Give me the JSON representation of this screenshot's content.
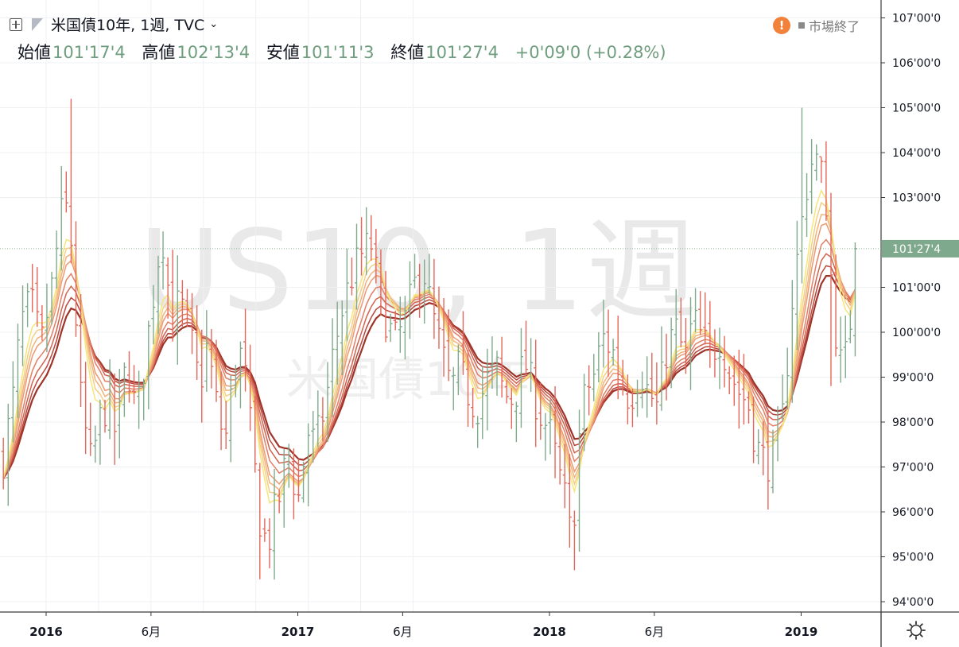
{
  "header": {
    "symbol_title": "米国債10年, 1週, TVC",
    "status": "市場終了",
    "status_icon": "exclamation-icon",
    "open_label": "始値",
    "open_value": "101'17'4",
    "high_label": "高値",
    "high_value": "102'13'4",
    "low_label": "安値",
    "low_value": "101'11'3",
    "close_label": "終値",
    "close_value": "101'27'4",
    "change": "+0'09'0 (+0.28%)"
  },
  "watermark": {
    "main": "US10, 1週",
    "sub": "米国債10年"
  },
  "colors": {
    "up": "#80aa8c",
    "down": "#e2675a",
    "grid": "#eef0f3",
    "price_tag": "#7fa98d",
    "ribbon": [
      "#f6e67a",
      "#f5cf86",
      "#f1b47d",
      "#ec9a72",
      "#e37f66",
      "#d2634f",
      "#b9473c",
      "#9e3329"
    ]
  },
  "chart_data": {
    "type": "ohlc",
    "title": "米国債10年, 1週, TVC",
    "xlabel": "",
    "ylabel": "",
    "ylim": [
      93.75,
      107.25
    ],
    "x_ticks": [
      {
        "label": "2016",
        "t": 0.0,
        "bold": true
      },
      {
        "label": "6月",
        "t": 0.4167,
        "bold": false
      },
      {
        "label": "2017",
        "t": 1.0,
        "bold": true
      },
      {
        "label": "6月",
        "t": 1.4167,
        "bold": false
      },
      {
        "label": "2018",
        "t": 2.0,
        "bold": true
      },
      {
        "label": "6月",
        "t": 2.4167,
        "bold": false
      },
      {
        "label": "2019",
        "t": 3.0,
        "bold": true
      }
    ],
    "y_ticks": [
      {
        "label": "94'00'0",
        "v": 94
      },
      {
        "label": "95'00'0",
        "v": 95
      },
      {
        "label": "96'00'0",
        "v": 96
      },
      {
        "label": "97'00'0",
        "v": 97
      },
      {
        "label": "98'00'0",
        "v": 98
      },
      {
        "label": "99'00'0",
        "v": 99
      },
      {
        "label": "100'00'0",
        "v": 100
      },
      {
        "label": "101'00'0",
        "v": 101
      },
      {
        "label": "103'00'0",
        "v": 103
      },
      {
        "label": "104'00'0",
        "v": 104
      },
      {
        "label": "105'00'0",
        "v": 105
      },
      {
        "label": "106'00'0",
        "v": 106
      },
      {
        "label": "107'00'0",
        "v": 107
      }
    ],
    "last_price": {
      "label": "101'27'4",
      "v": 101.86
    },
    "grid": true,
    "close_anchors": [
      [
        -0.17,
        97.2
      ],
      [
        -0.13,
        98.6
      ],
      [
        -0.1,
        100.2
      ],
      [
        -0.06,
        100.7
      ],
      [
        -0.02,
        99.7
      ],
      [
        0.02,
        100.9
      ],
      [
        0.06,
        102.6
      ],
      [
        0.09,
        102.8
      ],
      [
        0.11,
        101.1
      ],
      [
        0.14,
        98.3
      ],
      [
        0.18,
        97.0
      ],
      [
        0.21,
        98.0
      ],
      [
        0.25,
        98.5
      ],
      [
        0.28,
        97.6
      ],
      [
        0.32,
        99.4
      ],
      [
        0.36,
        98.1
      ],
      [
        0.39,
        99.3
      ],
      [
        0.43,
        101.0
      ],
      [
        0.46,
        102.3
      ],
      [
        0.5,
        100.2
      ],
      [
        0.53,
        100.7
      ],
      [
        0.57,
        100.0
      ],
      [
        0.61,
        98.8
      ],
      [
        0.64,
        99.7
      ],
      [
        0.68,
        98.3
      ],
      [
        0.71,
        97.5
      ],
      [
        0.75,
        99.2
      ],
      [
        0.78,
        99.6
      ],
      [
        0.82,
        97.4
      ],
      [
        0.85,
        95.8
      ],
      [
        0.88,
        95.2
      ],
      [
        0.9,
        95.8
      ],
      [
        0.93,
        96.4
      ],
      [
        0.96,
        97.4
      ],
      [
        1.0,
        96.2
      ],
      [
        1.04,
        97.8
      ],
      [
        1.07,
        97.5
      ],
      [
        1.11,
        98.4
      ],
      [
        1.14,
        99.5
      ],
      [
        1.18,
        100.6
      ],
      [
        1.21,
        101.2
      ],
      [
        1.25,
        101.7
      ],
      [
        1.29,
        102.0
      ],
      [
        1.32,
        101.0
      ],
      [
        1.36,
        100.1
      ],
      [
        1.39,
        99.8
      ],
      [
        1.43,
        100.3
      ],
      [
        1.46,
        101.0
      ],
      [
        1.5,
        101.4
      ],
      [
        1.53,
        100.5
      ],
      [
        1.57,
        99.6
      ],
      [
        1.61,
        98.7
      ],
      [
        1.64,
        99.2
      ],
      [
        1.68,
        98.6
      ],
      [
        1.71,
        98.3
      ],
      [
        1.75,
        98.9
      ],
      [
        1.79,
        99.2
      ],
      [
        1.82,
        98.6
      ],
      [
        1.86,
        98.5
      ],
      [
        1.9,
        99.4
      ],
      [
        1.93,
        98.8
      ],
      [
        1.96,
        98.2
      ],
      [
        2.0,
        97.8
      ],
      [
        2.04,
        96.8
      ],
      [
        2.07,
        96.1
      ],
      [
        2.09,
        95.1
      ],
      [
        2.11,
        97.3
      ],
      [
        2.14,
        98.6
      ],
      [
        2.18,
        99.1
      ],
      [
        2.21,
        99.9
      ],
      [
        2.25,
        99.6
      ],
      [
        2.29,
        98.9
      ],
      [
        2.32,
        98.5
      ],
      [
        2.36,
        99.2
      ],
      [
        2.39,
        98.7
      ],
      [
        2.43,
        98.3
      ],
      [
        2.46,
        99.5
      ],
      [
        2.5,
        100.1
      ],
      [
        2.54,
        99.4
      ],
      [
        2.57,
        100.3
      ],
      [
        2.61,
        99.8
      ],
      [
        2.64,
        99.5
      ],
      [
        2.68,
        99.9
      ],
      [
        2.71,
        99.2
      ],
      [
        2.75,
        98.7
      ],
      [
        2.79,
        98.4
      ],
      [
        2.82,
        97.5
      ],
      [
        2.86,
        97.1
      ],
      [
        2.89,
        97.2
      ],
      [
        2.93,
        98.2
      ],
      [
        2.96,
        100.5
      ],
      [
        2.99,
        101.9
      ],
      [
        3.02,
        103.2
      ],
      [
        3.05,
        104.0
      ],
      [
        3.08,
        103.5
      ],
      [
        3.1,
        102.9
      ],
      [
        3.12,
        101.1
      ],
      [
        3.14,
        99.9
      ],
      [
        3.16,
        99.2
      ],
      [
        3.18,
        99.5
      ],
      [
        3.2,
        100.5
      ],
      [
        3.22,
        101.86
      ]
    ],
    "ema_periods": [
      5,
      6,
      7,
      8,
      10,
      12,
      14,
      16
    ]
  }
}
